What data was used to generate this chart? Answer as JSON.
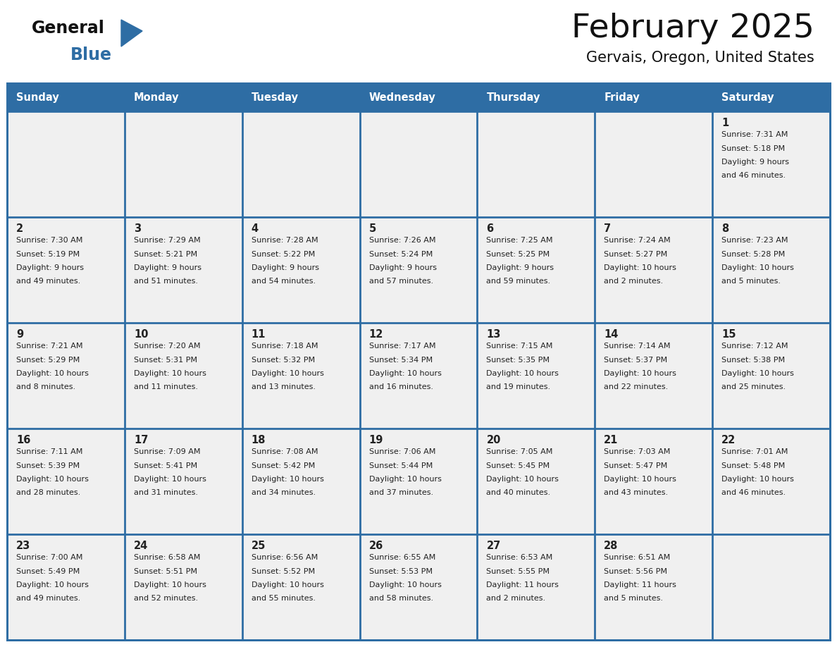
{
  "title": "February 2025",
  "subtitle": "Gervais, Oregon, United States",
  "days_of_week": [
    "Sunday",
    "Monday",
    "Tuesday",
    "Wednesday",
    "Thursday",
    "Friday",
    "Saturday"
  ],
  "header_bg": "#2e6da4",
  "header_text_color": "#FFFFFF",
  "cell_bg": "#f0f0f0",
  "cell_bg_white": "#FFFFFF",
  "cell_border_color": "#2e6da4",
  "text_color": "#222222",
  "day_num_color": "#222222",
  "title_color": "#111111",
  "subtitle_color": "#111111",
  "logo_general_color": "#111111",
  "logo_blue_color": "#2e6da4",
  "weeks": [
    [
      {
        "day": null,
        "info": null
      },
      {
        "day": null,
        "info": null
      },
      {
        "day": null,
        "info": null
      },
      {
        "day": null,
        "info": null
      },
      {
        "day": null,
        "info": null
      },
      {
        "day": null,
        "info": null
      },
      {
        "day": 1,
        "info": "Sunrise: 7:31 AM\nSunset: 5:18 PM\nDaylight: 9 hours\nand 46 minutes."
      }
    ],
    [
      {
        "day": 2,
        "info": "Sunrise: 7:30 AM\nSunset: 5:19 PM\nDaylight: 9 hours\nand 49 minutes."
      },
      {
        "day": 3,
        "info": "Sunrise: 7:29 AM\nSunset: 5:21 PM\nDaylight: 9 hours\nand 51 minutes."
      },
      {
        "day": 4,
        "info": "Sunrise: 7:28 AM\nSunset: 5:22 PM\nDaylight: 9 hours\nand 54 minutes."
      },
      {
        "day": 5,
        "info": "Sunrise: 7:26 AM\nSunset: 5:24 PM\nDaylight: 9 hours\nand 57 minutes."
      },
      {
        "day": 6,
        "info": "Sunrise: 7:25 AM\nSunset: 5:25 PM\nDaylight: 9 hours\nand 59 minutes."
      },
      {
        "day": 7,
        "info": "Sunrise: 7:24 AM\nSunset: 5:27 PM\nDaylight: 10 hours\nand 2 minutes."
      },
      {
        "day": 8,
        "info": "Sunrise: 7:23 AM\nSunset: 5:28 PM\nDaylight: 10 hours\nand 5 minutes."
      }
    ],
    [
      {
        "day": 9,
        "info": "Sunrise: 7:21 AM\nSunset: 5:29 PM\nDaylight: 10 hours\nand 8 minutes."
      },
      {
        "day": 10,
        "info": "Sunrise: 7:20 AM\nSunset: 5:31 PM\nDaylight: 10 hours\nand 11 minutes."
      },
      {
        "day": 11,
        "info": "Sunrise: 7:18 AM\nSunset: 5:32 PM\nDaylight: 10 hours\nand 13 minutes."
      },
      {
        "day": 12,
        "info": "Sunrise: 7:17 AM\nSunset: 5:34 PM\nDaylight: 10 hours\nand 16 minutes."
      },
      {
        "day": 13,
        "info": "Sunrise: 7:15 AM\nSunset: 5:35 PM\nDaylight: 10 hours\nand 19 minutes."
      },
      {
        "day": 14,
        "info": "Sunrise: 7:14 AM\nSunset: 5:37 PM\nDaylight: 10 hours\nand 22 minutes."
      },
      {
        "day": 15,
        "info": "Sunrise: 7:12 AM\nSunset: 5:38 PM\nDaylight: 10 hours\nand 25 minutes."
      }
    ],
    [
      {
        "day": 16,
        "info": "Sunrise: 7:11 AM\nSunset: 5:39 PM\nDaylight: 10 hours\nand 28 minutes."
      },
      {
        "day": 17,
        "info": "Sunrise: 7:09 AM\nSunset: 5:41 PM\nDaylight: 10 hours\nand 31 minutes."
      },
      {
        "day": 18,
        "info": "Sunrise: 7:08 AM\nSunset: 5:42 PM\nDaylight: 10 hours\nand 34 minutes."
      },
      {
        "day": 19,
        "info": "Sunrise: 7:06 AM\nSunset: 5:44 PM\nDaylight: 10 hours\nand 37 minutes."
      },
      {
        "day": 20,
        "info": "Sunrise: 7:05 AM\nSunset: 5:45 PM\nDaylight: 10 hours\nand 40 minutes."
      },
      {
        "day": 21,
        "info": "Sunrise: 7:03 AM\nSunset: 5:47 PM\nDaylight: 10 hours\nand 43 minutes."
      },
      {
        "day": 22,
        "info": "Sunrise: 7:01 AM\nSunset: 5:48 PM\nDaylight: 10 hours\nand 46 minutes."
      }
    ],
    [
      {
        "day": 23,
        "info": "Sunrise: 7:00 AM\nSunset: 5:49 PM\nDaylight: 10 hours\nand 49 minutes."
      },
      {
        "day": 24,
        "info": "Sunrise: 6:58 AM\nSunset: 5:51 PM\nDaylight: 10 hours\nand 52 minutes."
      },
      {
        "day": 25,
        "info": "Sunrise: 6:56 AM\nSunset: 5:52 PM\nDaylight: 10 hours\nand 55 minutes."
      },
      {
        "day": 26,
        "info": "Sunrise: 6:55 AM\nSunset: 5:53 PM\nDaylight: 10 hours\nand 58 minutes."
      },
      {
        "day": 27,
        "info": "Sunrise: 6:53 AM\nSunset: 5:55 PM\nDaylight: 11 hours\nand 2 minutes."
      },
      {
        "day": 28,
        "info": "Sunrise: 6:51 AM\nSunset: 5:56 PM\nDaylight: 11 hours\nand 5 minutes."
      },
      {
        "day": null,
        "info": null
      }
    ]
  ]
}
